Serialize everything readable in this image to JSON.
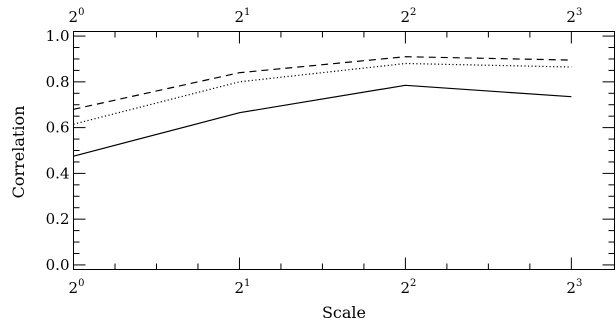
{
  "chart_data": {
    "type": "line",
    "x": [
      0,
      1,
      2,
      3
    ],
    "x_tick_labels": [
      {
        "base": "2",
        "exp": "0"
      },
      {
        "base": "2",
        "exp": "1"
      },
      {
        "base": "2",
        "exp": "2"
      },
      {
        "base": "2",
        "exp": "3"
      }
    ],
    "xlabel": "Scale",
    "ylabel": "Correlation",
    "xlim": [
      0,
      3.26
    ],
    "ylim": [
      -0.02,
      1.02
    ],
    "y_ticks": [
      0.0,
      0.2,
      0.4,
      0.6,
      0.8,
      1.0
    ],
    "y_tick_labels": [
      "0.0",
      "0.2",
      "0.4",
      "0.6",
      "0.8",
      "1.0"
    ],
    "top_axis_labels": true,
    "grid": false,
    "series": [
      {
        "style": "solid",
        "color": "#000000",
        "values": [
          0.475,
          0.665,
          0.785,
          0.735
        ]
      },
      {
        "style": "dashed",
        "color": "#000000",
        "values": [
          0.68,
          0.84,
          0.91,
          0.895
        ]
      },
      {
        "style": "dotted",
        "color": "#000000",
        "values": [
          0.615,
          0.8,
          0.88,
          0.865
        ]
      }
    ]
  }
}
